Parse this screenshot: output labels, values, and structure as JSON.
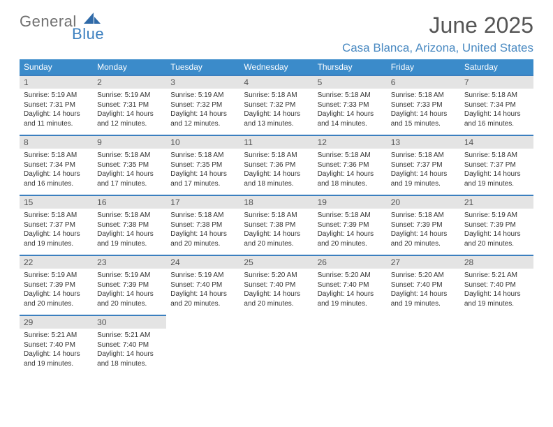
{
  "brand": {
    "general": "General",
    "blue": "Blue"
  },
  "title": "June 2025",
  "location": "Casa Blanca, Arizona, United States",
  "colors": {
    "header_bg": "#3b8bca",
    "header_text": "#ffffff",
    "row_border": "#3b7fbf",
    "daynum_bg": "#e4e4e4",
    "daynum_text": "#555555",
    "body_text": "#333333",
    "title_text": "#555555",
    "location_text": "#4a8ac2",
    "logo_gray": "#707070",
    "logo_blue": "#3b7fbf"
  },
  "day_labels": [
    "Sunday",
    "Monday",
    "Tuesday",
    "Wednesday",
    "Thursday",
    "Friday",
    "Saturday"
  ],
  "days": [
    {
      "n": 1,
      "sr": "5:19 AM",
      "ss": "7:31 PM",
      "dl": "14 hours and 11 minutes."
    },
    {
      "n": 2,
      "sr": "5:19 AM",
      "ss": "7:31 PM",
      "dl": "14 hours and 12 minutes."
    },
    {
      "n": 3,
      "sr": "5:19 AM",
      "ss": "7:32 PM",
      "dl": "14 hours and 12 minutes."
    },
    {
      "n": 4,
      "sr": "5:18 AM",
      "ss": "7:32 PM",
      "dl": "14 hours and 13 minutes."
    },
    {
      "n": 5,
      "sr": "5:18 AM",
      "ss": "7:33 PM",
      "dl": "14 hours and 14 minutes."
    },
    {
      "n": 6,
      "sr": "5:18 AM",
      "ss": "7:33 PM",
      "dl": "14 hours and 15 minutes."
    },
    {
      "n": 7,
      "sr": "5:18 AM",
      "ss": "7:34 PM",
      "dl": "14 hours and 16 minutes."
    },
    {
      "n": 8,
      "sr": "5:18 AM",
      "ss": "7:34 PM",
      "dl": "14 hours and 16 minutes."
    },
    {
      "n": 9,
      "sr": "5:18 AM",
      "ss": "7:35 PM",
      "dl": "14 hours and 17 minutes."
    },
    {
      "n": 10,
      "sr": "5:18 AM",
      "ss": "7:35 PM",
      "dl": "14 hours and 17 minutes."
    },
    {
      "n": 11,
      "sr": "5:18 AM",
      "ss": "7:36 PM",
      "dl": "14 hours and 18 minutes."
    },
    {
      "n": 12,
      "sr": "5:18 AM",
      "ss": "7:36 PM",
      "dl": "14 hours and 18 minutes."
    },
    {
      "n": 13,
      "sr": "5:18 AM",
      "ss": "7:37 PM",
      "dl": "14 hours and 19 minutes."
    },
    {
      "n": 14,
      "sr": "5:18 AM",
      "ss": "7:37 PM",
      "dl": "14 hours and 19 minutes."
    },
    {
      "n": 15,
      "sr": "5:18 AM",
      "ss": "7:37 PM",
      "dl": "14 hours and 19 minutes."
    },
    {
      "n": 16,
      "sr": "5:18 AM",
      "ss": "7:38 PM",
      "dl": "14 hours and 19 minutes."
    },
    {
      "n": 17,
      "sr": "5:18 AM",
      "ss": "7:38 PM",
      "dl": "14 hours and 20 minutes."
    },
    {
      "n": 18,
      "sr": "5:18 AM",
      "ss": "7:38 PM",
      "dl": "14 hours and 20 minutes."
    },
    {
      "n": 19,
      "sr": "5:18 AM",
      "ss": "7:39 PM",
      "dl": "14 hours and 20 minutes."
    },
    {
      "n": 20,
      "sr": "5:18 AM",
      "ss": "7:39 PM",
      "dl": "14 hours and 20 minutes."
    },
    {
      "n": 21,
      "sr": "5:19 AM",
      "ss": "7:39 PM",
      "dl": "14 hours and 20 minutes."
    },
    {
      "n": 22,
      "sr": "5:19 AM",
      "ss": "7:39 PM",
      "dl": "14 hours and 20 minutes."
    },
    {
      "n": 23,
      "sr": "5:19 AM",
      "ss": "7:39 PM",
      "dl": "14 hours and 20 minutes."
    },
    {
      "n": 24,
      "sr": "5:19 AM",
      "ss": "7:40 PM",
      "dl": "14 hours and 20 minutes."
    },
    {
      "n": 25,
      "sr": "5:20 AM",
      "ss": "7:40 PM",
      "dl": "14 hours and 20 minutes."
    },
    {
      "n": 26,
      "sr": "5:20 AM",
      "ss": "7:40 PM",
      "dl": "14 hours and 19 minutes."
    },
    {
      "n": 27,
      "sr": "5:20 AM",
      "ss": "7:40 PM",
      "dl": "14 hours and 19 minutes."
    },
    {
      "n": 28,
      "sr": "5:21 AM",
      "ss": "7:40 PM",
      "dl": "14 hours and 19 minutes."
    },
    {
      "n": 29,
      "sr": "5:21 AM",
      "ss": "7:40 PM",
      "dl": "14 hours and 19 minutes."
    },
    {
      "n": 30,
      "sr": "5:21 AM",
      "ss": "7:40 PM",
      "dl": "14 hours and 18 minutes."
    }
  ],
  "labels": {
    "sunrise_prefix": "Sunrise: ",
    "sunset_prefix": "Sunset: ",
    "daylight_prefix": "Daylight: "
  },
  "layout": {
    "first_weekday_index": 0,
    "rows": 5,
    "cols": 7
  }
}
